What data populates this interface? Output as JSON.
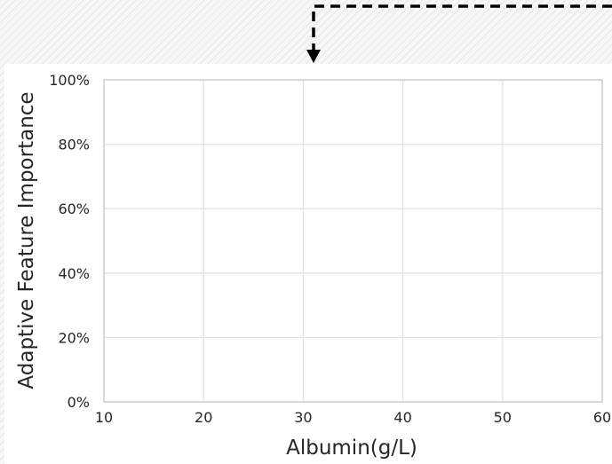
{
  "chart_data": {
    "type": "line",
    "title": "",
    "xlabel": "Albumin(g/L)",
    "ylabel": "Adaptive Feature Importance",
    "xlim": [
      10,
      60
    ],
    "ylim": [
      0,
      100
    ],
    "x_ticks": [
      10,
      20,
      30,
      40,
      50,
      60
    ],
    "y_ticks": [
      0,
      20,
      40,
      60,
      80,
      100
    ],
    "y_tick_labels": [
      "0%",
      "20%",
      "40%",
      "60%",
      "80%",
      "100%"
    ],
    "grid": true,
    "series": []
  },
  "colors": {
    "grid": "#e3e3e3",
    "axes_frame": "#cfcfcf",
    "arrow": "#000000",
    "text": "#262626"
  }
}
